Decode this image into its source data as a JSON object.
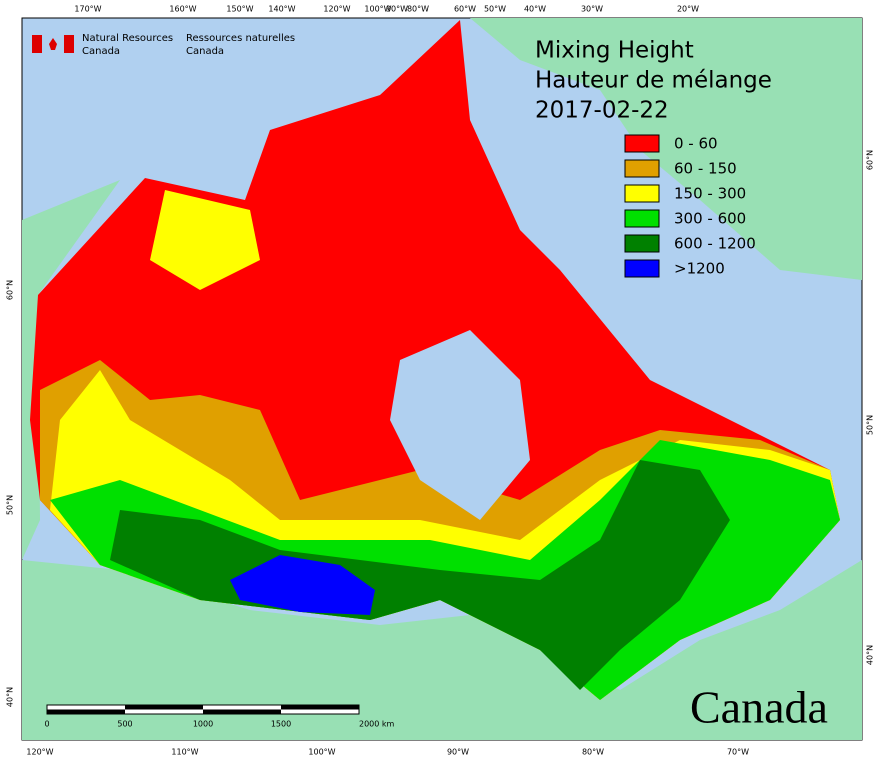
{
  "header": {
    "agency_en": [
      "Natural Resources",
      "Canada"
    ],
    "agency_fr": [
      "Ressources naturelles",
      "Canada"
    ]
  },
  "title": [
    "Mixing Height",
    "Hauteur de mélange",
    "2017-02-22"
  ],
  "legend": [
    {
      "label": "0 - 60",
      "color": "#ff0000"
    },
    {
      "label": "60 - 150",
      "color": "#e0a000"
    },
    {
      "label": "150 - 300",
      "color": "#ffff00"
    },
    {
      "label": "300 - 600",
      "color": "#00e000"
    },
    {
      "label": "600 - 1200",
      "color": "#008000"
    },
    {
      "label": ">1200",
      "color": "#0000ff"
    }
  ],
  "top_labels": [
    "170°W",
    "160°W",
    "150°W",
    "140°W",
    "120°W",
    "100°W",
    "90°W",
    "80°W",
    "60°W",
    "50°W",
    "40°W",
    "30°W",
    "20°W"
  ],
  "bottom_labels": [
    "120°W",
    "110°W",
    "100°W",
    "90°W",
    "80°W",
    "70°W"
  ],
  "left_labels": [
    "60°N",
    "50°N",
    "40°N"
  ],
  "right_labels": [
    "60°N",
    "50°N",
    "40°N"
  ],
  "scale_labels": [
    "0",
    "500",
    "1000",
    "1500",
    "2000 km"
  ],
  "wordmark": "Canada"
}
